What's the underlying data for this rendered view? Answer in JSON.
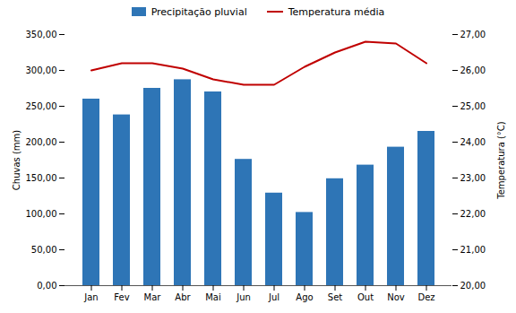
{
  "chart_data": {
    "type": "bar",
    "categories": [
      "Jan",
      "Fev",
      "Mar",
      "Abr",
      "Mai",
      "Jun",
      "Jul",
      "Ago",
      "Set",
      "Out",
      "Nov",
      "Dez"
    ],
    "ylabel": "Chuvas (mm)",
    "y2label": "Temperatura (°C)",
    "ylim": [
      0,
      350
    ],
    "yticks": [
      {
        "value": 0,
        "label": "0,00"
      },
      {
        "value": 50,
        "label": "50,00"
      },
      {
        "value": 100,
        "label": "100,00"
      },
      {
        "value": 150,
        "label": "150,00"
      },
      {
        "value": 200,
        "label": "200,00"
      },
      {
        "value": 250,
        "label": "250,00"
      },
      {
        "value": 300,
        "label": "300,00"
      },
      {
        "value": 350,
        "label": "350,00"
      }
    ],
    "y2lim": [
      20,
      27
    ],
    "y2ticks": [
      {
        "value": 20,
        "label": "20,00"
      },
      {
        "value": 21,
        "label": "21,00"
      },
      {
        "value": 22,
        "label": "22,00"
      },
      {
        "value": 23,
        "label": "23,00"
      },
      {
        "value": 24,
        "label": "24,00"
      },
      {
        "value": 25,
        "label": "25,00"
      },
      {
        "value": 26,
        "label": "26,00"
      },
      {
        "value": 27,
        "label": "27,00"
      }
    ],
    "series": [
      {
        "name": "Precipitação pluvial",
        "type": "bar",
        "color": "#2E75B6",
        "values": [
          260,
          238,
          275,
          287,
          270,
          176,
          129,
          102,
          149,
          168,
          193,
          215
        ]
      },
      {
        "name": "Temperatura média",
        "type": "line",
        "color": "#C00000",
        "axis": "y2",
        "values": [
          26.0,
          26.2,
          26.2,
          26.05,
          25.75,
          25.6,
          25.6,
          26.1,
          26.5,
          26.8,
          26.75,
          26.2
        ]
      }
    ],
    "legend": "top",
    "grid": false
  }
}
